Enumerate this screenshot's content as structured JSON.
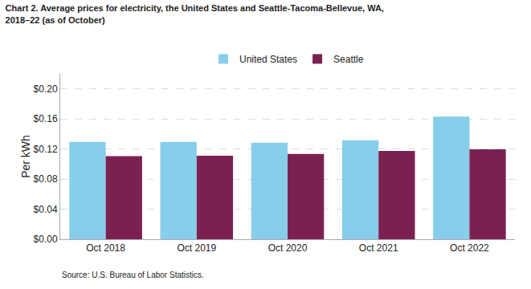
{
  "chart_data": {
    "type": "bar",
    "title": "Chart 2. Average prices for electricity, the United States and Seattle-Tacoma-Bellevue, WA,\n2018–22 (as of October)",
    "ylabel": "Per kWh",
    "source": "Source: U.S. Bureau of Labor Statistics.",
    "categories": [
      "Oct 2018",
      "Oct 2019",
      "Oct 2020",
      "Oct 2021",
      "Oct 2022"
    ],
    "series": [
      {
        "name": "United States",
        "color": "#87CEEB",
        "values": [
          0.1295,
          0.1295,
          0.1285,
          0.1315,
          0.163
        ]
      },
      {
        "name": "Seattle",
        "color": "#7B2152",
        "values": [
          0.1105,
          0.111,
          0.1135,
          0.1175,
          0.1195
        ]
      }
    ],
    "ylim": [
      0,
      0.22
    ],
    "yticks": [
      {
        "value": 0.0,
        "label": "$0.00"
      },
      {
        "value": 0.04,
        "label": "$0.04"
      },
      {
        "value": 0.08,
        "label": "$0.08"
      },
      {
        "value": 0.12,
        "label": "$0.12"
      },
      {
        "value": 0.16,
        "label": "$0.16"
      },
      {
        "value": 0.2,
        "label": "$0.20"
      }
    ],
    "grid": true,
    "legend": "top"
  }
}
